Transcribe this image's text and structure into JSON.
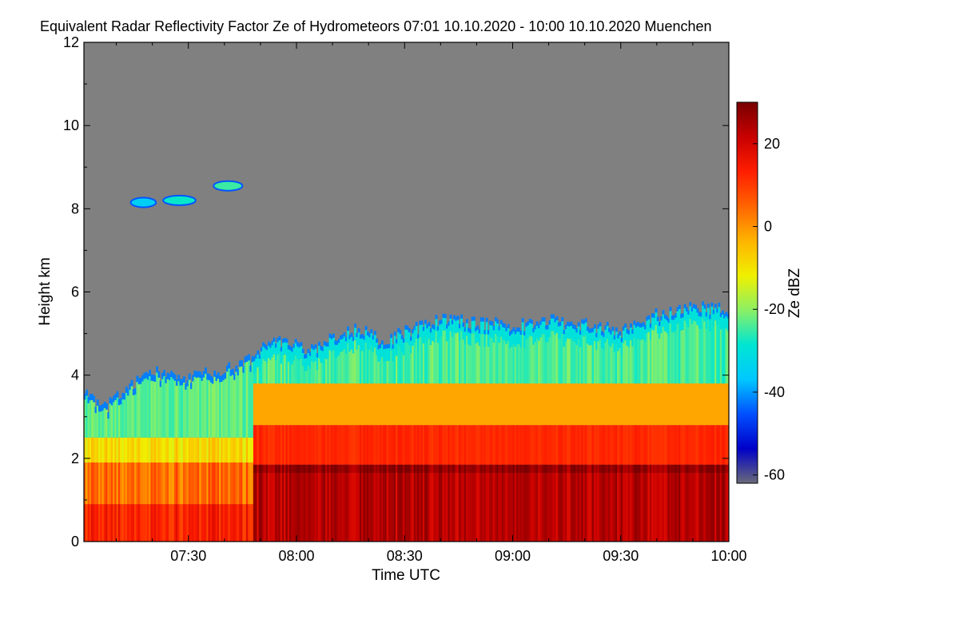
{
  "chart_data": {
    "type": "heatmap",
    "title": "Equivalent Radar Reflectivity Factor Ze of Hydrometeors   07:01 10.10.2020 - 10:00 10.10.2020 Muenchen",
    "xlabel": "Time UTC",
    "ylabel": "Height km",
    "x_range_minutes_utc": [
      421,
      600
    ],
    "x_ticks": [
      {
        "minute": 450,
        "label": "07:30"
      },
      {
        "minute": 480,
        "label": "08:00"
      },
      {
        "minute": 510,
        "label": "08:30"
      },
      {
        "minute": 540,
        "label": "09:00"
      },
      {
        "minute": 570,
        "label": "09:30"
      },
      {
        "minute": 600,
        "label": "10:00"
      }
    ],
    "y_range_km": [
      0,
      12
    ],
    "y_ticks": [
      {
        "value": 0,
        "label": "0"
      },
      {
        "value": 2,
        "label": "2"
      },
      {
        "value": 4,
        "label": "4"
      },
      {
        "value": 6,
        "label": "6"
      },
      {
        "value": 8,
        "label": "8"
      },
      {
        "value": 10,
        "label": "10"
      },
      {
        "value": 12,
        "label": "12"
      }
    ],
    "colorbar": {
      "label": "Ze dBZ",
      "range_dbz": [
        -62,
        30
      ],
      "ticks": [
        {
          "value": 20,
          "label": "20"
        },
        {
          "value": 0,
          "label": "0"
        },
        {
          "value": -20,
          "label": "-20"
        },
        {
          "value": -40,
          "label": "-40"
        },
        {
          "value": -60,
          "label": "-60"
        }
      ],
      "colors": [
        "#6a6a7a",
        "#0000c8",
        "#0050ff",
        "#00c8ff",
        "#00e6d2",
        "#8cf064",
        "#f0f000",
        "#ffb400",
        "#ff6400",
        "#ff1e00",
        "#c80000",
        "#780000"
      ]
    },
    "no_data_color": "#808080",
    "cloud_top_profile_km": [
      {
        "minute": 421,
        "top": 3.6
      },
      {
        "minute": 427,
        "top": 3.2
      },
      {
        "minute": 432,
        "top": 3.7
      },
      {
        "minute": 440,
        "top": 4.1
      },
      {
        "minute": 446,
        "top": 3.9
      },
      {
        "minute": 452,
        "top": 4.0
      },
      {
        "minute": 458,
        "top": 4.1
      },
      {
        "minute": 464,
        "top": 4.2
      },
      {
        "minute": 470,
        "top": 4.6
      },
      {
        "minute": 476,
        "top": 4.85
      },
      {
        "minute": 484,
        "top": 4.6
      },
      {
        "minute": 490,
        "top": 4.9
      },
      {
        "minute": 497,
        "top": 5.1
      },
      {
        "minute": 504,
        "top": 4.8
      },
      {
        "minute": 510,
        "top": 5.05
      },
      {
        "minute": 520,
        "top": 5.35
      },
      {
        "minute": 530,
        "top": 5.25
      },
      {
        "minute": 540,
        "top": 5.2
      },
      {
        "minute": 550,
        "top": 5.3
      },
      {
        "minute": 560,
        "top": 5.2
      },
      {
        "minute": 570,
        "top": 5.05
      },
      {
        "minute": 580,
        "top": 5.45
      },
      {
        "minute": 590,
        "top": 5.6
      },
      {
        "minute": 600,
        "top": 5.6
      }
    ],
    "melting_layer_km": 1.75,
    "precip_onset_minute": 468,
    "upper_cloud_patches": [
      {
        "minute_start": 434,
        "minute_end": 441,
        "height_km": 8.15,
        "dbz": -35
      },
      {
        "minute_start": 443,
        "minute_end": 452,
        "height_km": 8.2,
        "dbz": -28
      },
      {
        "minute_start": 457,
        "minute_end": 465,
        "height_km": 8.55,
        "dbz": -25
      }
    ]
  }
}
